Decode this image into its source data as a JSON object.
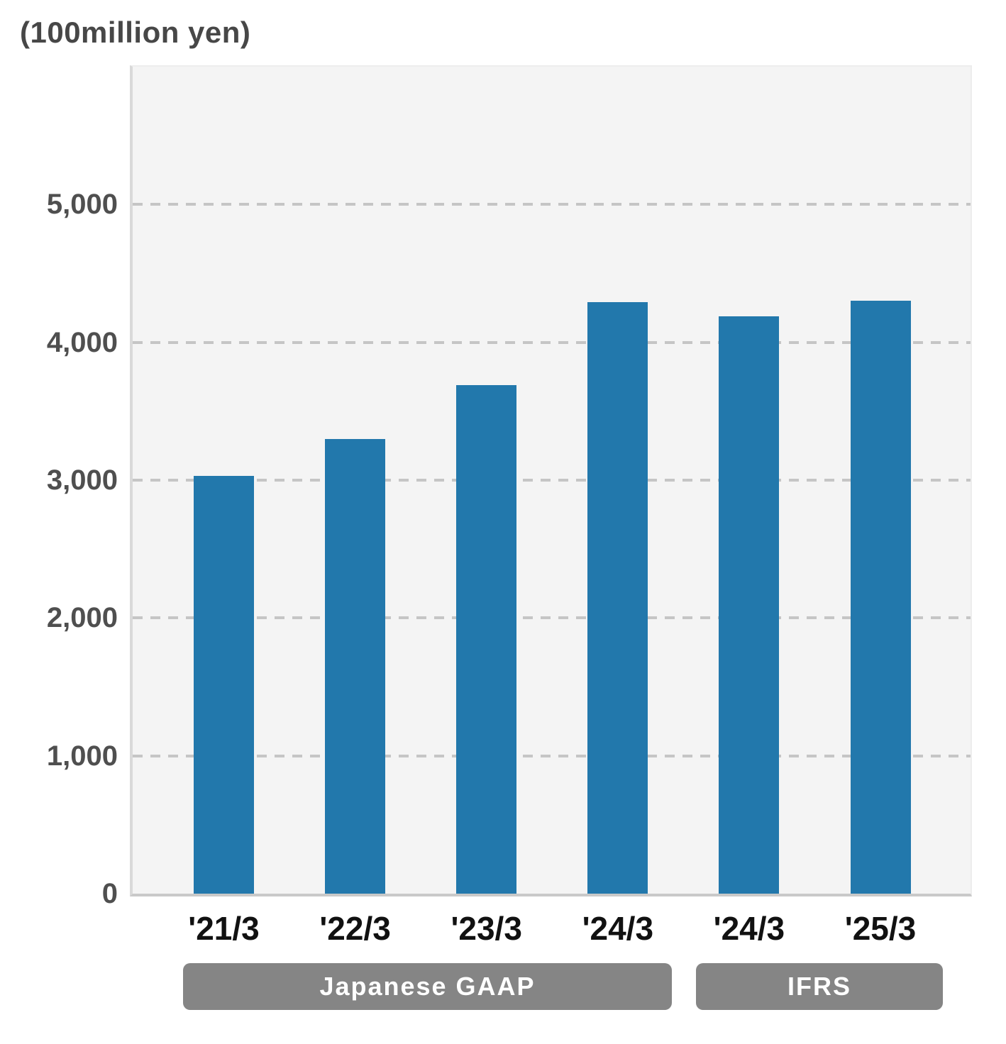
{
  "chart_data": {
    "type": "bar",
    "title": "",
    "unit_label": "(100million yen)",
    "categories": [
      "'21/3",
      "'22/3",
      "'23/3",
      "'24/3",
      "'24/3",
      "'25/3"
    ],
    "values": [
      3030,
      3300,
      3690,
      4290,
      4190,
      4300
    ],
    "series_note": "single blue series, values estimated from gridlines",
    "groups": [
      {
        "label": "Japanese GAAP",
        "first_bar": 0,
        "last_bar": 3
      },
      {
        "label": "IFRS",
        "first_bar": 4,
        "last_bar": 5
      }
    ],
    "ylim": [
      0,
      6000
    ],
    "yticks": [
      0,
      1000,
      2000,
      3000,
      4000,
      5000
    ],
    "ytick_labels": [
      "0",
      "1,000",
      "2,000",
      "3,000",
      "4,000",
      "5,000"
    ],
    "xlabel": "",
    "ylabel": "",
    "grid": "horizontal dashed",
    "legend": "none",
    "colors": {
      "bar": "#2278ac",
      "plot_background": "#f4f4f4",
      "page_background": "#ffffff",
      "gridline": "#c5c5c5",
      "axis_line": "#c9c9c9",
      "y_label_text": "#4f4f4f",
      "x_label_text": "#111111",
      "group_label_background": "#858585",
      "group_label_text": "#ffffff"
    }
  }
}
